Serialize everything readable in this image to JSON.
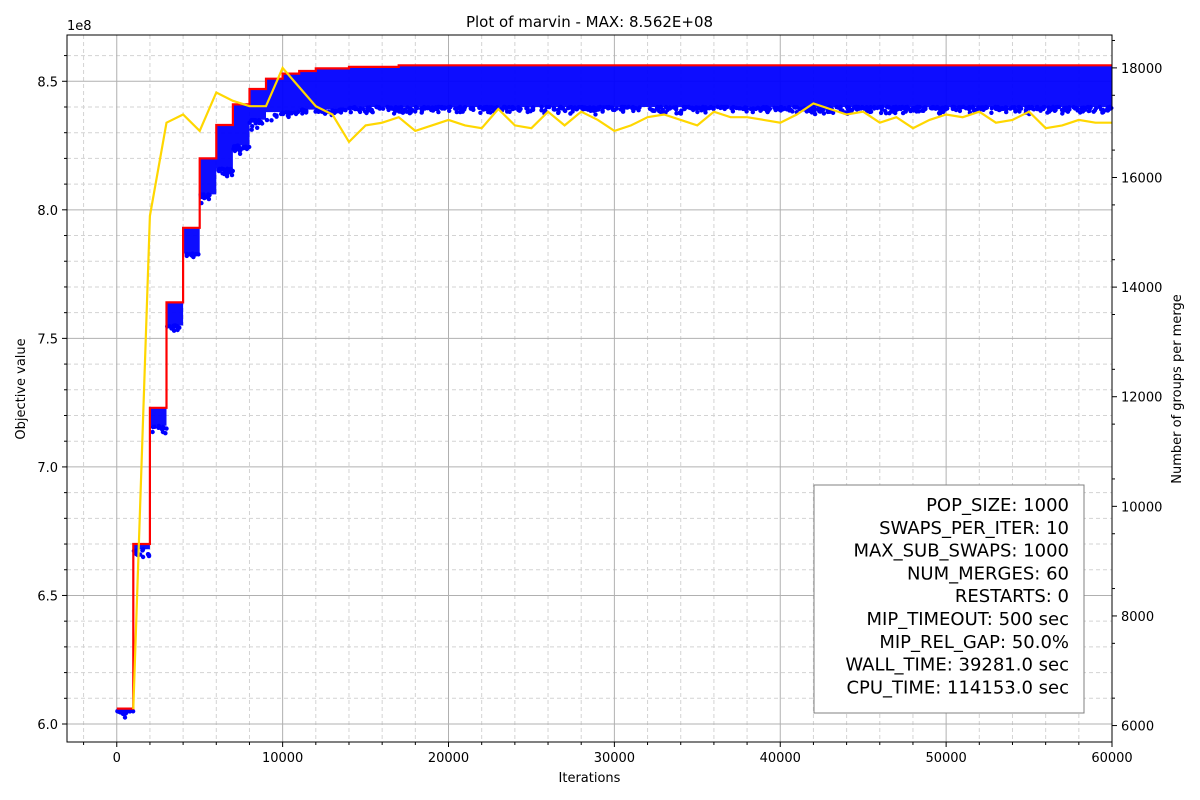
{
  "chart_data": {
    "type": "line",
    "title": "Plot of marvin - MAX: 8.562E+08",
    "xlabel": "Iterations",
    "ylabel": "Objective value",
    "y2label": "Number of groups per merge",
    "y_offset_label": "1e8",
    "xlim": [
      -3000,
      60000
    ],
    "ylim": [
      5.93,
      8.68
    ],
    "y2lim": [
      5700,
      18600
    ],
    "grid": true,
    "x_ticks": [
      0,
      10000,
      20000,
      30000,
      40000,
      50000,
      60000
    ],
    "x_tick_labels": [
      "0",
      "10000",
      "20000",
      "30000",
      "40000",
      "50000",
      "60000"
    ],
    "y_ticks": [
      6.0,
      6.5,
      7.0,
      7.5,
      8.0,
      8.5
    ],
    "y_tick_labels": [
      "6.0",
      "6.5",
      "7.0",
      "7.5",
      "8.0",
      "8.5"
    ],
    "y2_ticks": [
      6000,
      8000,
      10000,
      12000,
      14000,
      16000,
      18000
    ],
    "y2_tick_labels": [
      "6000",
      "8000",
      "10000",
      "12000",
      "14000",
      "16000",
      "18000"
    ],
    "colors": {
      "max": "#ff0000",
      "population": "#0000ff",
      "groups": "#ffd700"
    },
    "series": [
      {
        "axis": "left",
        "color": "#ff0000",
        "style": "step",
        "x": [
          0,
          1000,
          1000,
          2000,
          2000,
          3000,
          3000,
          4000,
          4000,
          5000,
          5000,
          6000,
          6000,
          7000,
          7000,
          8000,
          8000,
          9000,
          9000,
          10000,
          10000,
          11000,
          11000,
          12000,
          12000,
          14000,
          14000,
          17000,
          17000,
          60000
        ],
        "y": [
          6.06,
          6.06,
          6.7,
          6.7,
          7.23,
          7.23,
          7.64,
          7.64,
          7.93,
          7.93,
          8.2,
          8.2,
          8.33,
          8.33,
          8.41,
          8.41,
          8.47,
          8.47,
          8.51,
          8.51,
          8.53,
          8.53,
          8.54,
          8.54,
          8.55,
          8.55,
          8.556,
          8.556,
          8.562,
          8.562
        ]
      },
      {
        "axis": "left",
        "color": "#0000ff",
        "style": "scatter-band",
        "x": [
          0,
          1000,
          2000,
          3000,
          4000,
          5000,
          6000,
          7000,
          8000,
          9000,
          10000,
          11000,
          12000,
          14000,
          17000,
          20000,
          30000,
          40000,
          50000,
          60000
        ],
        "y_low": [
          6.05,
          6.68,
          7.16,
          7.55,
          7.83,
          8.06,
          8.16,
          8.25,
          8.35,
          8.38,
          8.38,
          8.39,
          8.39,
          8.4,
          8.4,
          8.4,
          8.4,
          8.4,
          8.4,
          8.4
        ],
        "y_high": [
          6.06,
          6.7,
          7.23,
          7.64,
          7.93,
          8.2,
          8.33,
          8.41,
          8.47,
          8.51,
          8.53,
          8.54,
          8.55,
          8.556,
          8.562,
          8.562,
          8.562,
          8.562,
          8.562,
          8.562
        ]
      },
      {
        "axis": "right",
        "color": "#ffd700",
        "style": "line",
        "x": [
          1000,
          2000,
          3000,
          4000,
          5000,
          6000,
          7000,
          8000,
          9000,
          10000,
          11000,
          12000,
          13000,
          14000,
          15000,
          16000,
          17000,
          18000,
          19000,
          20000,
          21000,
          22000,
          23000,
          24000,
          25000,
          26000,
          27000,
          28000,
          29000,
          30000,
          31000,
          32000,
          33000,
          34000,
          35000,
          36000,
          37000,
          38000,
          39000,
          40000,
          41000,
          42000,
          43000,
          44000,
          45000,
          46000,
          47000,
          48000,
          49000,
          50000,
          51000,
          52000,
          53000,
          54000,
          55000,
          56000,
          57000,
          58000,
          59000,
          60000
        ],
        "y": [
          6300,
          15300,
          17000,
          17150,
          16850,
          17550,
          17400,
          17300,
          17300,
          18000,
          17650,
          17300,
          17150,
          16650,
          16950,
          17000,
          17100,
          16850,
          16950,
          17050,
          16950,
          16900,
          17250,
          16950,
          16900,
          17200,
          16950,
          17200,
          17050,
          16850,
          16950,
          17100,
          17150,
          17050,
          16950,
          17200,
          17100,
          17100,
          17050,
          17000,
          17150,
          17350,
          17250,
          17150,
          17200,
          17000,
          17100,
          16900,
          17050,
          17150,
          17100,
          17200,
          17000,
          17050,
          17200,
          16900,
          16950,
          17050,
          17000,
          17000
        ]
      }
    ],
    "annotation_lines": [
      "POP_SIZE: 1000",
      "SWAPS_PER_ITER: 10",
      "MAX_SUB_SWAPS: 1000",
      "NUM_MERGES: 60",
      "RESTARTS: 0",
      "MIP_TIMEOUT: 500 sec",
      "MIP_REL_GAP: 50.0%",
      "WALL_TIME: 39281.0 sec",
      "CPU_TIME: 114153.0 sec"
    ],
    "annotation_placement": "bottom-right"
  }
}
